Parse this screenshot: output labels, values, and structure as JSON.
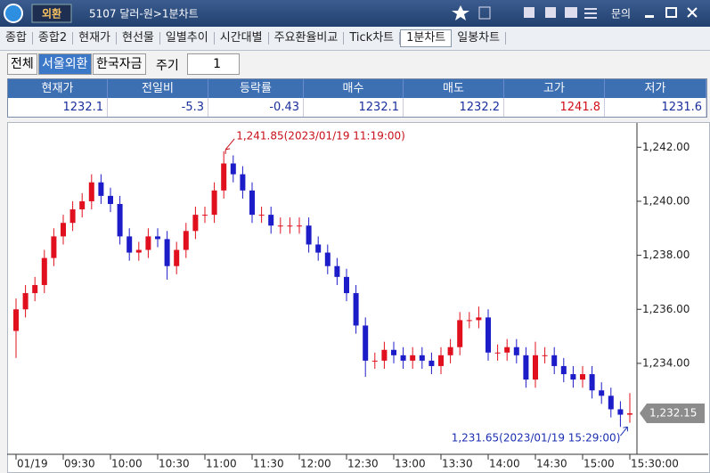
{
  "window": {
    "badge": "외환",
    "title": "5107 달러-원>1분차트",
    "menu": "문의"
  },
  "tabs": [
    "종합",
    "종합2",
    "현재가",
    "현선물",
    "일별추이",
    "시간대별",
    "주요환율비교",
    "Tick차트",
    "1분차트",
    "일봉차트"
  ],
  "active_tab": 8,
  "toolbar": {
    "buttons": [
      "전체",
      "서울외환",
      "한국자금"
    ],
    "active_button": 1,
    "period_label": "주기",
    "period_value": 1
  },
  "quote_table": {
    "headers": [
      "현재가",
      "전일비",
      "등락률",
      "매수",
      "매도",
      "고가",
      "저가"
    ],
    "values": [
      1232.1,
      -5.3,
      -0.43,
      1232.1,
      1232.2,
      1241.8,
      1231.6
    ],
    "colors": [
      "#1a2f9c",
      "#1a2f9c",
      "#1a2f9c",
      "#1a2f9c",
      "#1a2f9c",
      "#d0101a",
      "#1a2f9c"
    ]
  },
  "chart_data": {
    "type": "candlestick",
    "categories": [
      "01/19",
      null,
      null,
      null,
      null,
      "09:30",
      null,
      null,
      null,
      null,
      "10:00",
      null,
      null,
      null,
      null,
      "10:30",
      null,
      null,
      null,
      null,
      "11:00",
      null,
      null,
      null,
      null,
      "11:30",
      null,
      null,
      null,
      null,
      "12:00",
      null,
      null,
      null,
      null,
      "12:30",
      null,
      null,
      null,
      null,
      "13:00",
      null,
      null,
      null,
      null,
      "13:30",
      null,
      null,
      null,
      null,
      "14:00",
      null,
      null,
      null,
      null,
      "14:30",
      null,
      null,
      null,
      null,
      "15:00",
      null,
      null,
      null,
      null,
      "15:30:00"
    ],
    "open": [
      1235.2,
      1236.0,
      1236.6,
      1236.9,
      1237.9,
      1238.7,
      1239.2,
      1239.7,
      1240.0,
      1240.7,
      1240.2,
      1239.9,
      1238.7,
      1238.1,
      1238.2,
      1238.7,
      1238.6,
      1237.6,
      1238.2,
      1238.9,
      1239.5,
      1239.5,
      1240.4,
      1241.4,
      1241.0,
      1240.4,
      1239.5,
      1239.5,
      1239.1,
      1239.1,
      1239.1,
      1239.1,
      1238.4,
      1238.1,
      1237.6,
      1237.2,
      1236.6,
      1235.4,
      1234.1,
      1234.1,
      1234.5,
      1234.3,
      1234.1,
      1234.3,
      1234.1,
      1233.9,
      1234.3,
      1234.6,
      1235.6,
      1235.6,
      1235.7,
      1234.4,
      1234.4,
      1234.6,
      1234.3,
      1233.4,
      1234.3,
      1234.3,
      1233.9,
      1233.6,
      1233.4,
      1233.6,
      1233.0,
      1232.8,
      1232.3,
      1232.1
    ],
    "high": [
      1236.4,
      1236.9,
      1237.2,
      1238.2,
      1239.0,
      1239.5,
      1240.0,
      1240.3,
      1241.0,
      1241.0,
      1240.5,
      1240.2,
      1239.0,
      1238.5,
      1239.0,
      1239.0,
      1238.9,
      1238.5,
      1239.2,
      1239.8,
      1239.8,
      1240.7,
      1241.85,
      1241.7,
      1241.3,
      1240.7,
      1239.8,
      1239.8,
      1239.4,
      1239.4,
      1239.4,
      1239.4,
      1238.7,
      1238.4,
      1237.9,
      1237.5,
      1236.9,
      1235.7,
      1234.4,
      1234.8,
      1234.8,
      1234.6,
      1234.6,
      1234.6,
      1234.4,
      1234.6,
      1234.9,
      1235.9,
      1235.9,
      1236.1,
      1236.0,
      1234.7,
      1234.9,
      1234.9,
      1234.6,
      1234.8,
      1234.6,
      1234.6,
      1234.2,
      1233.9,
      1233.9,
      1233.9,
      1233.3,
      1233.1,
      1232.6,
      1232.9
    ],
    "low": [
      1234.2,
      1235.7,
      1236.3,
      1236.6,
      1237.6,
      1238.4,
      1238.9,
      1239.4,
      1239.7,
      1239.9,
      1239.6,
      1238.4,
      1237.8,
      1237.8,
      1237.9,
      1238.3,
      1237.1,
      1237.3,
      1237.9,
      1238.6,
      1239.2,
      1239.2,
      1240.1,
      1240.7,
      1240.1,
      1239.2,
      1239.2,
      1238.8,
      1238.8,
      1238.8,
      1238.8,
      1238.1,
      1237.8,
      1237.3,
      1236.9,
      1236.3,
      1235.1,
      1233.5,
      1233.8,
      1233.8,
      1234.0,
      1233.8,
      1233.8,
      1233.8,
      1233.6,
      1233.6,
      1234.0,
      1234.3,
      1235.3,
      1235.3,
      1234.1,
      1234.1,
      1234.1,
      1234.0,
      1233.1,
      1233.1,
      1234.0,
      1233.6,
      1233.3,
      1233.1,
      1233.1,
      1232.7,
      1232.5,
      1232.0,
      1231.65,
      1231.8
    ],
    "close": [
      1236.0,
      1236.6,
      1236.9,
      1237.9,
      1238.7,
      1239.2,
      1239.7,
      1240.0,
      1240.7,
      1240.2,
      1239.9,
      1238.7,
      1238.1,
      1238.2,
      1238.7,
      1238.6,
      1237.6,
      1238.2,
      1238.9,
      1239.5,
      1239.5,
      1240.4,
      1241.4,
      1241.0,
      1240.4,
      1239.5,
      1239.5,
      1239.1,
      1239.1,
      1239.1,
      1239.1,
      1238.4,
      1238.1,
      1237.6,
      1237.2,
      1236.6,
      1235.4,
      1234.1,
      1234.1,
      1234.5,
      1234.3,
      1234.1,
      1234.3,
      1234.1,
      1233.9,
      1234.3,
      1234.6,
      1235.6,
      1235.6,
      1235.7,
      1234.4,
      1234.4,
      1234.6,
      1234.3,
      1233.4,
      1234.3,
      1234.3,
      1233.9,
      1233.6,
      1233.4,
      1233.6,
      1233.0,
      1232.8,
      1232.3,
      1232.1,
      1232.15
    ],
    "up_color": "#e0101e",
    "down_color": "#1c1cc8",
    "ylim": [
      1230.7,
      1242.9
    ],
    "yticks": [
      {
        "value": 1234,
        "label": "1,234.00"
      },
      {
        "value": 1236,
        "label": "1,236.00"
      },
      {
        "value": 1238,
        "label": "1,238.00"
      },
      {
        "value": 1240,
        "label": "1,240.00"
      },
      {
        "value": 1242,
        "label": "1,242.00"
      }
    ],
    "grid": false,
    "high_annotation": "1,241.85(2023/01/19 11:19:00)",
    "high_annotation_color": "#c8101a",
    "low_annotation": "1,231.65(2023/01/19 15:29:00)",
    "low_annotation_color": "#1c2fb0",
    "last_price": {
      "value": 1232.15,
      "label": "1,232.15"
    }
  }
}
